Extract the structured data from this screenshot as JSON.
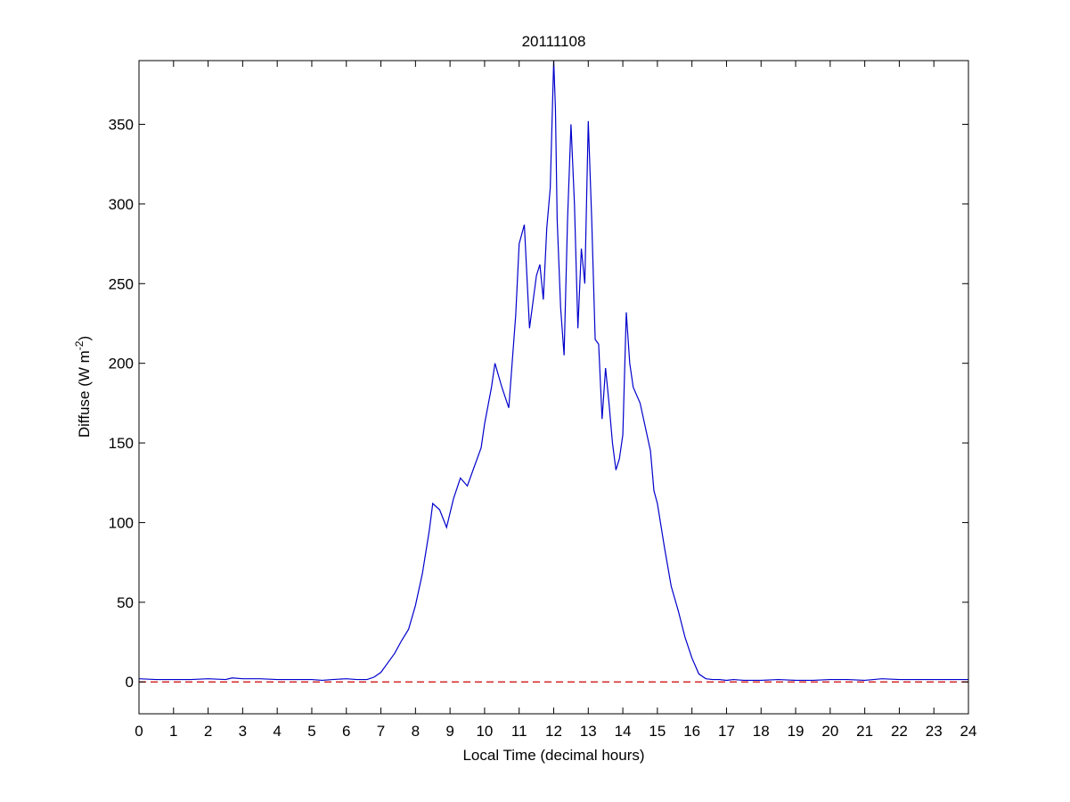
{
  "chart_data": {
    "type": "line",
    "title": "20111108",
    "xlabel": "Local Time (decimal hours)",
    "ylabel": {
      "prefix": "Diffuse (W m",
      "superscript": "-2",
      "suffix": ")"
    },
    "xlim": [
      0,
      24
    ],
    "ylim": [
      -20,
      390
    ],
    "xticks": [
      0,
      1,
      2,
      3,
      4,
      5,
      6,
      7,
      8,
      9,
      10,
      11,
      12,
      13,
      14,
      15,
      16,
      17,
      18,
      19,
      20,
      21,
      22,
      23,
      24
    ],
    "yticks": [
      0,
      50,
      100,
      150,
      200,
      250,
      300,
      350
    ],
    "grid": false,
    "series": [
      {
        "color": "#0000cc",
        "style": "solid",
        "x": [
          0,
          0.5,
          1,
          1.5,
          2,
          2.5,
          2.7,
          3,
          3.5,
          4,
          4.5,
          5,
          5.3,
          5.6,
          6,
          6.3,
          6.6,
          6.8,
          7.0,
          7.2,
          7.4,
          7.6,
          7.8,
          8.0,
          8.2,
          8.4,
          8.5,
          8.7,
          8.9,
          9.1,
          9.3,
          9.5,
          9.7,
          9.9,
          10.0,
          10.2,
          10.3,
          10.5,
          10.7,
          10.9,
          11.0,
          11.15,
          11.3,
          11.5,
          11.6,
          11.7,
          11.8,
          11.9,
          12.0,
          12.05,
          12.1,
          12.2,
          12.3,
          12.4,
          12.5,
          12.6,
          12.7,
          12.8,
          12.9,
          13.0,
          13.1,
          13.2,
          13.3,
          13.4,
          13.5,
          13.6,
          13.7,
          13.8,
          13.9,
          14.0,
          14.1,
          14.2,
          14.3,
          14.5,
          14.6,
          14.7,
          14.8,
          14.9,
          15.0,
          15.2,
          15.4,
          15.6,
          15.8,
          16.0,
          16.2,
          16.4,
          16.6,
          16.8,
          17.0,
          17.2,
          17.5,
          18,
          18.5,
          19,
          19.5,
          20,
          20.5,
          21,
          21.5,
          22,
          22.5,
          23,
          23.5,
          24
        ],
        "y": [
          2,
          1.5,
          1.5,
          1.5,
          2,
          1.5,
          2.5,
          2,
          2,
          1.5,
          1.5,
          1.5,
          1,
          1.5,
          2,
          1.5,
          1.5,
          3,
          6,
          12,
          18,
          26,
          33,
          48,
          68,
          95,
          112,
          108,
          97,
          115,
          128,
          123,
          135,
          147,
          162,
          185,
          200,
          185,
          172,
          230,
          275,
          287,
          222,
          255,
          262,
          240,
          285,
          310,
          390,
          360,
          290,
          235,
          205,
          290,
          350,
          300,
          222,
          272,
          250,
          352,
          290,
          215,
          212,
          165,
          197,
          175,
          150,
          133,
          140,
          155,
          232,
          200,
          185,
          175,
          165,
          155,
          145,
          120,
          112,
          85,
          60,
          45,
          28,
          15,
          5,
          2,
          1.5,
          1.5,
          1,
          1.5,
          1,
          1,
          1.5,
          1,
          1,
          1.5,
          1.5,
          1,
          2,
          1.5,
          1.5,
          1.5,
          1.5,
          1.5
        ]
      },
      {
        "color": "#cc0000",
        "style": "dashed",
        "x": [
          0,
          24
        ],
        "y": [
          0,
          0
        ]
      }
    ]
  }
}
